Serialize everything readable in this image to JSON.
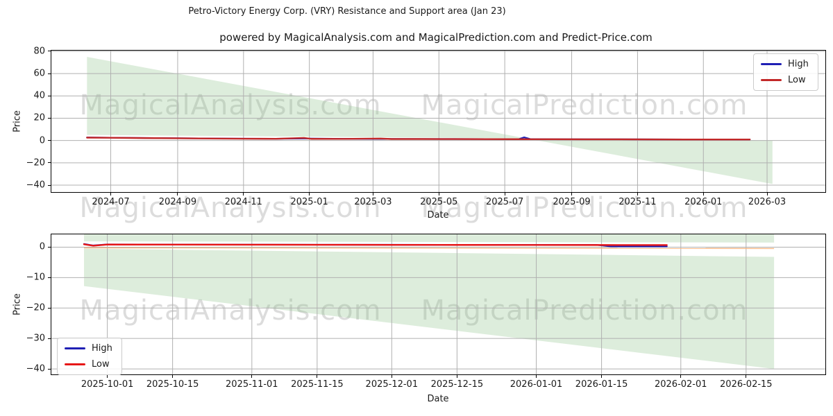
{
  "figure": {
    "watermarks": {
      "left": "MagicalAnalysis.com",
      "right": "MagicalPrediction.com"
    }
  },
  "colors": {
    "grid": "#b0b0b0",
    "spine": "#000000",
    "watermark": "#dcdcdc",
    "band_fill": "rgba(141,195,138,0.30)",
    "mid_line": "rgba(246,178,122,0.9)"
  },
  "chart_data": [
    {
      "type": "line",
      "title": "Petro-Victory Energy Corp. (VRY) Resistance and Support area (Jan 23)",
      "subtitle": "powered by MagicalAnalysis.com and MagicalPrediction.com and Predict-Price.com",
      "xlabel": "Date",
      "ylabel": "Price",
      "grid": true,
      "legend_position": "top-right",
      "xlim": [
        "2024-05-07",
        "2026-04-24"
      ],
      "ylim": [
        -46.2,
        80.6
      ],
      "yticks": [
        80,
        60,
        40,
        20,
        0,
        -20,
        -40
      ],
      "xticks": [
        {
          "date": "2024-07-01",
          "label": "2024-07"
        },
        {
          "date": "2024-09-01",
          "label": "2024-09"
        },
        {
          "date": "2024-11-01",
          "label": "2024-11"
        },
        {
          "date": "2025-01-01",
          "label": "2025-01"
        },
        {
          "date": "2025-03-01",
          "label": "2025-03"
        },
        {
          "date": "2025-05-01",
          "label": "2025-05"
        },
        {
          "date": "2025-07-01",
          "label": "2025-07"
        },
        {
          "date": "2025-09-01",
          "label": "2025-09"
        },
        {
          "date": "2025-11-01",
          "label": "2025-11"
        },
        {
          "date": "2026-01-01",
          "label": "2026-01"
        },
        {
          "date": "2026-03-01",
          "label": "2026-03"
        }
      ],
      "bands": [
        {
          "upper": [
            [
              "2024-06-09",
              75
            ],
            [
              "2026-03-06",
              -39
            ]
          ],
          "lower": [
            [
              "2024-06-09",
              5
            ],
            [
              "2026-03-06",
              0.2
            ]
          ]
        }
      ],
      "series": [
        {
          "name": "High",
          "color": "#1f1fb4",
          "width": 2.2,
          "points": [
            [
              "2024-06-09",
              2.75
            ],
            [
              "2024-07-01",
              2.55
            ],
            [
              "2024-08-01",
              2.3
            ],
            [
              "2024-09-01",
              2.05
            ],
            [
              "2024-10-01",
              1.85
            ],
            [
              "2024-11-01",
              1.7
            ],
            [
              "2024-12-01",
              1.6
            ],
            [
              "2024-12-27",
              1.8
            ],
            [
              "2025-02-01",
              1.5
            ],
            [
              "2025-03-12",
              1.45
            ],
            [
              "2025-04-15",
              1.4
            ],
            [
              "2025-05-15",
              1.35
            ],
            [
              "2025-06-15",
              1.3
            ],
            [
              "2025-07-14",
              1.25
            ],
            [
              "2025-07-19",
              2.9
            ],
            [
              "2025-07-25",
              1.25
            ],
            [
              "2025-08-15",
              1.2
            ],
            [
              "2025-09-15",
              1.15
            ],
            [
              "2025-10-15",
              1.1
            ],
            [
              "2025-11-15",
              1.05
            ],
            [
              "2025-12-15",
              1.0
            ],
            [
              "2026-01-15",
              1.0
            ],
            [
              "2026-02-13",
              0.95
            ]
          ]
        },
        {
          "name": "Low",
          "color": "#c22828",
          "width": 2.4,
          "points": [
            [
              "2024-06-09",
              2.6
            ],
            [
              "2024-07-01",
              2.45
            ],
            [
              "2024-08-01",
              2.2
            ],
            [
              "2024-09-01",
              2.0
            ],
            [
              "2024-10-01",
              1.8
            ],
            [
              "2024-11-01",
              1.65
            ],
            [
              "2024-12-01",
              1.55
            ],
            [
              "2024-12-27",
              2.35
            ],
            [
              "2025-01-03",
              1.5
            ],
            [
              "2025-02-01",
              1.45
            ],
            [
              "2025-03-08",
              1.75
            ],
            [
              "2025-03-18",
              1.35
            ],
            [
              "2025-04-15",
              1.35
            ],
            [
              "2025-05-15",
              1.3
            ],
            [
              "2025-06-15",
              1.25
            ],
            [
              "2025-07-15",
              1.2
            ],
            [
              "2025-08-15",
              1.15
            ],
            [
              "2025-09-15",
              1.1
            ],
            [
              "2025-10-15",
              1.05
            ],
            [
              "2025-11-15",
              1.0
            ],
            [
              "2025-12-15",
              0.95
            ],
            [
              "2026-01-15",
              0.95
            ],
            [
              "2026-02-13",
              0.9
            ]
          ]
        }
      ]
    },
    {
      "type": "line",
      "title": "",
      "xlabel": "Date",
      "ylabel": "Price",
      "grid": true,
      "legend_position": "bottom-left",
      "xlim": [
        "2025-09-19",
        "2026-03-04"
      ],
      "ylim": [
        -41.8,
        4.2
      ],
      "yticks": [
        0,
        -10,
        -20,
        -30,
        -40
      ],
      "xticks": [
        {
          "date": "2025-10-01",
          "label": "2025-10-01"
        },
        {
          "date": "2025-10-15",
          "label": "2025-10-15"
        },
        {
          "date": "2025-11-01",
          "label": "2025-11-01"
        },
        {
          "date": "2025-11-15",
          "label": "2025-11-15"
        },
        {
          "date": "2025-12-01",
          "label": "2025-12-01"
        },
        {
          "date": "2025-12-15",
          "label": "2025-12-15"
        },
        {
          "date": "2026-01-01",
          "label": "2026-01-01"
        },
        {
          "date": "2026-01-15",
          "label": "2026-01-15"
        },
        {
          "date": "2026-02-01",
          "label": "2026-02-01"
        },
        {
          "date": "2026-02-15",
          "label": "2026-02-15"
        }
      ],
      "bands": [
        {
          "upper": [
            [
              "2025-09-26",
              4.2
            ],
            [
              "2026-02-21",
              4.2
            ]
          ],
          "lower": [
            [
              "2025-09-26",
              1.9
            ],
            [
              "2026-02-21",
              1.5
            ]
          ]
        },
        {
          "upper": [
            [
              "2025-09-26",
              -0.5
            ],
            [
              "2026-02-21",
              -3.2
            ]
          ],
          "lower": [
            [
              "2025-09-26",
              -12.8
            ],
            [
              "2026-02-21",
              -40
            ]
          ]
        }
      ],
      "mid_line": [
        [
          "2025-09-26",
          -0.25
        ],
        [
          "2026-02-21",
          -0.45
        ]
      ],
      "series": [
        {
          "name": "High",
          "color": "#1f1fb4",
          "width": 2.2,
          "points": [
            [
              "2025-09-26",
              1.05
            ],
            [
              "2025-09-28",
              0.55
            ],
            [
              "2025-10-01",
              0.9
            ],
            [
              "2025-10-15",
              0.85
            ],
            [
              "2025-11-01",
              0.82
            ],
            [
              "2025-11-15",
              0.8
            ],
            [
              "2025-12-01",
              0.78
            ],
            [
              "2025-12-15",
              0.75
            ],
            [
              "2026-01-01",
              0.73
            ],
            [
              "2026-01-14",
              0.72
            ],
            [
              "2026-01-17",
              0.25
            ],
            [
              "2026-01-29",
              0.25
            ]
          ]
        },
        {
          "name": "Low",
          "color": "#e61717",
          "width": 2.4,
          "points": [
            [
              "2025-09-26",
              0.95
            ],
            [
              "2025-09-28",
              0.45
            ],
            [
              "2025-10-01",
              0.85
            ],
            [
              "2025-10-15",
              0.82
            ],
            [
              "2025-11-01",
              0.8
            ],
            [
              "2025-11-15",
              0.78
            ],
            [
              "2025-12-01",
              0.75
            ],
            [
              "2025-12-15",
              0.73
            ],
            [
              "2026-01-01",
              0.72
            ],
            [
              "2026-01-15",
              0.7
            ],
            [
              "2026-01-29",
              0.68
            ]
          ]
        }
      ]
    }
  ]
}
